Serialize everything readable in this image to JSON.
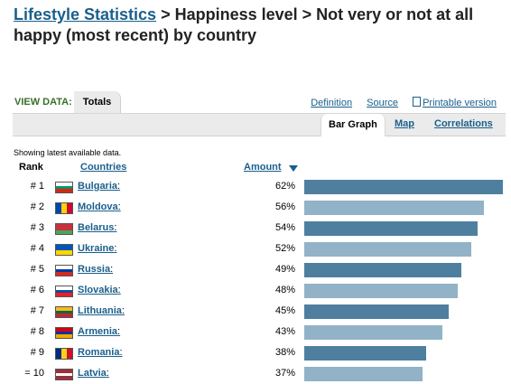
{
  "heading": {
    "link": "Lifestyle Statistics",
    "rest": " > Happiness level > Not very or not at all happy (most recent) by country"
  },
  "tabs": {
    "view_label": "VIEW DATA:",
    "active": "Totals"
  },
  "links": {
    "definition": "Definition",
    "source": "Source",
    "printable": "Printable version"
  },
  "subtabs": {
    "bar_graph": "Bar Graph",
    "map": "Map",
    "correlations": "Correlations"
  },
  "note": "Showing latest available data.",
  "columns": {
    "rank": "Rank",
    "countries": "Countries",
    "amount": "Amount"
  },
  "colors": {
    "bar_dark": "#4f7f9f",
    "bar_light": "#92b2c7",
    "link": "#1a5f8c"
  },
  "chart_data": {
    "type": "bar",
    "orientation": "horizontal",
    "categories": [
      "Bulgaria",
      "Moldova",
      "Belarus",
      "Ukraine",
      "Russia",
      "Slovakia",
      "Lithuania",
      "Armenia",
      "Romania",
      "Latvia"
    ],
    "values": [
      62,
      56,
      54,
      52,
      49,
      48,
      45,
      43,
      38,
      37
    ],
    "unit": "%"
  },
  "rows": [
    {
      "rank": "# 1",
      "country": "Bulgaria",
      "amount": "62%",
      "value": 62,
      "flag": "bulgaria-flag-icon",
      "flag_colors": [
        "#ffffff",
        "#00966e",
        "#d62612"
      ],
      "flag_dir": "h"
    },
    {
      "rank": "# 2",
      "country": "Moldova",
      "amount": "56%",
      "value": 56,
      "flag": "moldova-flag-icon",
      "flag_colors": [
        "#0046ae",
        "#ffd200",
        "#cc092f"
      ],
      "flag_dir": "v"
    },
    {
      "rank": "# 3",
      "country": "Belarus",
      "amount": "54%",
      "value": 54,
      "flag": "belarus-flag-icon",
      "flag_colors": [
        "#c8313e",
        "#c8313e",
        "#4aa657"
      ],
      "flag_dir": "h"
    },
    {
      "rank": "# 4",
      "country": "Ukraine",
      "amount": "52%",
      "value": 52,
      "flag": "ukraine-flag-icon",
      "flag_colors": [
        "#0057b7",
        "#ffd700"
      ],
      "flag_dir": "h"
    },
    {
      "rank": "# 5",
      "country": "Russia",
      "amount": "49%",
      "value": 49,
      "flag": "russia-flag-icon",
      "flag_colors": [
        "#ffffff",
        "#0039a6",
        "#d52b1e"
      ],
      "flag_dir": "h"
    },
    {
      "rank": "# 6",
      "country": "Slovakia",
      "amount": "48%",
      "value": 48,
      "flag": "slovakia-flag-icon",
      "flag_colors": [
        "#ffffff",
        "#0b4ea2",
        "#ee1c25"
      ],
      "flag_dir": "h"
    },
    {
      "rank": "# 7",
      "country": "Lithuania",
      "amount": "45%",
      "value": 45,
      "flag": "lithuania-flag-icon",
      "flag_colors": [
        "#fdb913",
        "#006a44",
        "#c1272d"
      ],
      "flag_dir": "h"
    },
    {
      "rank": "# 8",
      "country": "Armenia",
      "amount": "43%",
      "value": 43,
      "flag": "armenia-flag-icon",
      "flag_colors": [
        "#d90012",
        "#0033a0",
        "#f2a800"
      ],
      "flag_dir": "h"
    },
    {
      "rank": "# 9",
      "country": "Romania",
      "amount": "38%",
      "value": 38,
      "flag": "romania-flag-icon",
      "flag_colors": [
        "#002b7f",
        "#fcd116",
        "#ce1126"
      ],
      "flag_dir": "v"
    },
    {
      "rank": "= 10",
      "country": "Latvia",
      "amount": "37%",
      "value": 37,
      "flag": "latvia-flag-icon",
      "flag_colors": [
        "#9e3039",
        "#ffffff",
        "#9e3039"
      ],
      "flag_dir": "h"
    }
  ]
}
